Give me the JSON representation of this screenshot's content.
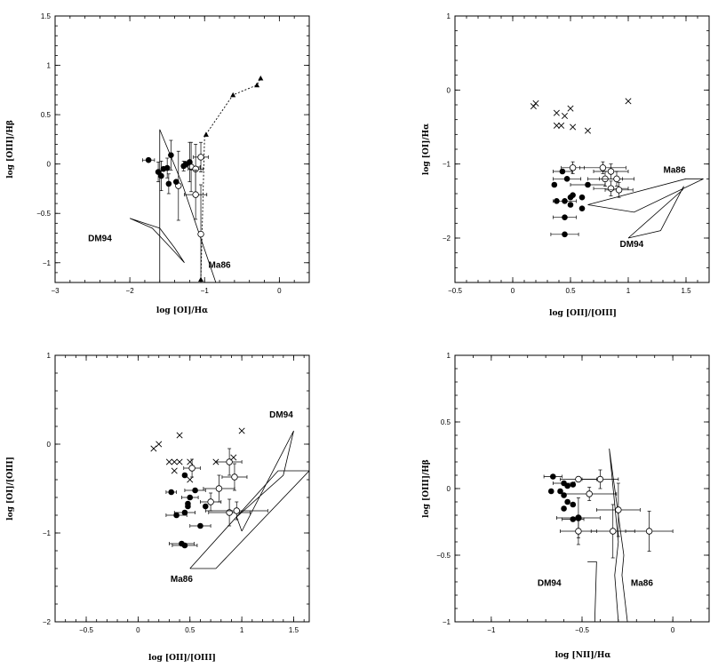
{
  "chart_data": [
    {
      "type": "scatter",
      "xlabel": "log [OI]/Hα",
      "ylabel": "log [OIII]/Hβ",
      "xlim": [
        -3,
        0.4
      ],
      "ylim": [
        -1.2,
        1.5
      ],
      "xticks": [
        -3,
        -2,
        -1,
        0
      ],
      "yticks": [
        -1,
        -0.5,
        0,
        0.5,
        1,
        1.5
      ],
      "yticklabels": [
        "−1",
        "−0.5",
        "0",
        "0.5",
        "1",
        "1.5"
      ],
      "xticklabels": [
        "−3",
        "−2",
        "−1",
        "0"
      ],
      "filled_points": [
        {
          "x": -1.75,
          "y": 0.04,
          "xerr": 0.08
        },
        {
          "x": -1.62,
          "y": -0.08,
          "yerr": 0.1
        },
        {
          "x": -1.58,
          "y": -0.12,
          "yerr": 0.15
        },
        {
          "x": -1.55,
          "y": -0.05
        },
        {
          "x": -1.5,
          "y": -0.04,
          "yerr": 0.1
        },
        {
          "x": -1.48,
          "y": -0.2,
          "yerr": 0.1
        },
        {
          "x": -1.45,
          "y": 0.09,
          "yerr": 0.15
        },
        {
          "x": -1.38,
          "y": -0.18
        },
        {
          "x": -1.28,
          "y": -0.02,
          "yerr": 0.05
        },
        {
          "x": -1.25,
          "y": 0.0
        },
        {
          "x": -1.2,
          "y": 0.02,
          "yerr": 0.2
        }
      ],
      "open_points": [
        {
          "x": -1.35,
          "y": -0.22,
          "yerr": 0.35
        },
        {
          "x": -1.18,
          "y": -0.03,
          "xerr": 0.12,
          "yerr": 0.25
        },
        {
          "x": -1.12,
          "y": -0.05,
          "xerr": 0.1,
          "yerr": 0.25
        },
        {
          "x": -1.05,
          "y": 0.07,
          "xerr": 0.1,
          "yerr": 0.15
        },
        {
          "x": -1.12,
          "y": -0.31,
          "xerr": 0.15,
          "yerr": 0.25
        },
        {
          "x": -1.05,
          "y": -0.71,
          "yerr": 0.5
        }
      ],
      "triangles": [
        {
          "x": -1.05,
          "y": -1.17
        },
        {
          "x": -0.98,
          "y": 0.3
        },
        {
          "x": -0.62,
          "y": 0.7
        },
        {
          "x": -0.3,
          "y": 0.8
        },
        {
          "x": -0.25,
          "y": 0.87
        }
      ],
      "dotted_track": [
        [
          -1.05,
          -1.17
        ],
        [
          -1.0,
          0.28
        ],
        [
          -0.62,
          0.7
        ],
        [
          -0.3,
          0.8
        ],
        [
          -0.25,
          0.87
        ]
      ],
      "models": [
        {
          "name": "DM94",
          "label": "DM94",
          "polygon": [
            [
              -2.0,
              -0.55
            ],
            [
              -1.7,
              -0.65
            ],
            [
              -1.45,
              -0.85
            ],
            [
              -1.27,
              -1.0
            ],
            [
              -1.4,
              -0.85
            ],
            [
              -1.6,
              -0.65
            ],
            [
              -2.0,
              -0.55
            ]
          ]
        },
        {
          "name": "Ma86",
          "label": "Ma86",
          "polygon": [
            [
              -1.6,
              -1.2
            ],
            [
              -1.6,
              0.35
            ],
            [
              -1.3,
              -0.2
            ],
            [
              -0.85,
              -1.2
            ]
          ]
        }
      ],
      "label_positions": {
        "DM94": [
          -2.4,
          -0.78
        ],
        "Ma86": [
          -0.8,
          -1.05
        ]
      }
    },
    {
      "type": "scatter",
      "xlabel": "log [OII]/[OIII]",
      "ylabel": "log [OI]/Hα",
      "xlim": [
        -0.5,
        1.7
      ],
      "ylim": [
        -2.6,
        1
      ],
      "xticks": [
        -0.5,
        0,
        0.5,
        1,
        1.5
      ],
      "yticks": [
        -2,
        -1,
        0,
        1
      ],
      "xticklabels": [
        "−0.5",
        "0",
        "0.5",
        "1",
        "1.5"
      ],
      "yticklabels": [
        "−2",
        "−1",
        "0",
        "1"
      ],
      "crosses": [
        {
          "x": 0.18,
          "y": -0.22
        },
        {
          "x": 0.2,
          "y": -0.18
        },
        {
          "x": 0.38,
          "y": -0.31
        },
        {
          "x": 0.45,
          "y": -0.35
        },
        {
          "x": 0.5,
          "y": -0.25
        },
        {
          "x": 0.38,
          "y": -0.48
        },
        {
          "x": 0.42,
          "y": -0.48
        },
        {
          "x": 0.52,
          "y": -0.5
        },
        {
          "x": 0.65,
          "y": -0.55
        },
        {
          "x": 1.0,
          "y": -0.15
        }
      ],
      "filled_points": [
        {
          "x": 0.43,
          "y": -1.1,
          "xerr": 0.08
        },
        {
          "x": 0.47,
          "y": -1.2,
          "xerr": 0.12
        },
        {
          "x": 0.38,
          "y": -1.5
        },
        {
          "x": 0.36,
          "y": -1.28
        },
        {
          "x": 0.45,
          "y": -1.5,
          "xerr": 0.1
        },
        {
          "x": 0.5,
          "y": -1.45
        },
        {
          "x": 0.52,
          "y": -1.42
        },
        {
          "x": 0.6,
          "y": -1.45
        },
        {
          "x": 0.6,
          "y": -1.6
        },
        {
          "x": 0.65,
          "y": -1.28,
          "xerr": 0.15
        },
        {
          "x": 0.5,
          "y": -1.55
        },
        {
          "x": 0.45,
          "y": -1.72,
          "xerr": 0.1
        },
        {
          "x": 0.45,
          "y": -1.95,
          "xerr": 0.12
        }
      ],
      "open_points": [
        {
          "x": 0.52,
          "y": -1.05,
          "xerr": 0.1,
          "yerr": 0.08
        },
        {
          "x": 0.78,
          "y": -1.05,
          "xerr": 0.2,
          "yerr": 0.08
        },
        {
          "x": 0.8,
          "y": -1.2,
          "xerr": 0.15,
          "yerr": 0.1
        },
        {
          "x": 0.85,
          "y": -1.1,
          "xerr": 0.15,
          "yerr": 0.1
        },
        {
          "x": 0.9,
          "y": -1.2,
          "xerr": 0.15,
          "yerr": 0.1
        },
        {
          "x": 0.85,
          "y": -1.33,
          "xerr": 0.15,
          "yerr": 0.1
        },
        {
          "x": 0.92,
          "y": -1.35,
          "xerr": 0.12,
          "yerr": 0.1
        }
      ],
      "models": [
        {
          "name": "Ma86",
          "label": "Ma86",
          "polygon": [
            [
              0.65,
              -1.55
            ],
            [
              1.5,
              -1.2
            ],
            [
              1.65,
              -1.2
            ],
            [
              1.05,
              -1.65
            ],
            [
              0.65,
              -1.55
            ]
          ]
        },
        {
          "name": "DM94",
          "label": "DM94",
          "polygon": [
            [
              1.0,
              -2.0
            ],
            [
              1.47,
              -1.35
            ],
            [
              1.48,
              -1.3
            ],
            [
              1.28,
              -1.9
            ],
            [
              1.0,
              -2.0
            ]
          ]
        }
      ],
      "label_positions": {
        "Ma86": [
          1.4,
          -1.12
        ],
        "DM94": [
          1.03,
          -2.12
        ]
      }
    },
    {
      "type": "scatter",
      "xlabel": "log [OII]/[OIII]",
      "ylabel": "log [OI]/[OIII]",
      "xlim": [
        -0.8,
        1.65
      ],
      "ylim": [
        -2,
        1
      ],
      "xticks": [
        -0.5,
        0,
        0.5,
        1,
        1.5
      ],
      "yticks": [
        -2,
        -1,
        0,
        1
      ],
      "xticklabels": [
        "−0.5",
        "0",
        "0.5",
        "1",
        "1.5"
      ],
      "yticklabels": [
        "−2",
        "−1",
        "0",
        "1"
      ],
      "crosses": [
        {
          "x": 0.15,
          "y": -0.05
        },
        {
          "x": 0.2,
          "y": 0.0
        },
        {
          "x": 0.4,
          "y": 0.1
        },
        {
          "x": 1.0,
          "y": 0.15
        },
        {
          "x": 0.3,
          "y": -0.2
        },
        {
          "x": 0.35,
          "y": -0.2
        },
        {
          "x": 0.4,
          "y": -0.2
        },
        {
          "x": 0.5,
          "y": -0.2
        },
        {
          "x": 0.75,
          "y": -0.2
        },
        {
          "x": 0.92,
          "y": -0.15
        },
        {
          "x": 0.35,
          "y": -0.3
        },
        {
          "x": 0.5,
          "y": -0.4
        }
      ],
      "filled_points": [
        {
          "x": 0.32,
          "y": -0.54,
          "xerr": 0.05
        },
        {
          "x": 0.45,
          "y": -0.35
        },
        {
          "x": 0.5,
          "y": -0.6,
          "xerr": 0.08
        },
        {
          "x": 0.55,
          "y": -0.52,
          "xerr": 0.1
        },
        {
          "x": 0.6,
          "y": -0.92,
          "xerr": 0.1
        },
        {
          "x": 0.48,
          "y": -0.67
        },
        {
          "x": 0.45,
          "y": -0.77,
          "xerr": 0.1
        },
        {
          "x": 0.37,
          "y": -0.8,
          "xerr": 0.1
        },
        {
          "x": 0.48,
          "y": -0.7
        },
        {
          "x": 0.65,
          "y": -0.7
        },
        {
          "x": 0.42,
          "y": -1.12,
          "xerr": 0.12
        },
        {
          "x": 0.45,
          "y": -1.14,
          "xerr": 0.12
        }
      ],
      "open_points": [
        {
          "x": 0.52,
          "y": -0.27,
          "xerr": 0.08,
          "yerr": 0.1
        },
        {
          "x": 0.88,
          "y": -0.2,
          "xerr": 0.12,
          "yerr": 0.15
        },
        {
          "x": 0.93,
          "y": -0.37,
          "xerr": 0.12,
          "yerr": 0.15
        },
        {
          "x": 0.78,
          "y": -0.5,
          "xerr": 0.15,
          "yerr": 0.15
        },
        {
          "x": 0.7,
          "y": -0.65,
          "xerr": 0.1,
          "yerr": 0.1
        },
        {
          "x": 0.88,
          "y": -0.77,
          "xerr": 0.2,
          "yerr": 0.15
        },
        {
          "x": 0.95,
          "y": -0.75,
          "xerr": 0.3,
          "yerr": 0.1
        }
      ],
      "models": [
        {
          "name": "DM94",
          "label": "DM94",
          "polygon": [
            [
              1.0,
              -0.98
            ],
            [
              1.5,
              0.15
            ],
            [
              1.4,
              -0.35
            ],
            [
              0.95,
              -0.82
            ],
            [
              1.0,
              -0.98
            ]
          ]
        },
        {
          "name": "Ma86",
          "label": "Ma86",
          "polygon": [
            [
              0.5,
              -1.4
            ],
            [
              1.35,
              -0.3
            ],
            [
              1.65,
              -0.3
            ],
            [
              0.75,
              -1.4
            ],
            [
              0.5,
              -1.4
            ]
          ]
        }
      ],
      "label_positions": {
        "DM94": [
          1.38,
          0.3
        ],
        "Ma86": [
          0.42,
          -1.55
        ]
      }
    },
    {
      "type": "scatter",
      "xlabel": "log [NII]/Hα",
      "ylabel": "log [OIII]/Hβ",
      "xlim": [
        -1.2,
        0.2
      ],
      "ylim": [
        -1,
        1
      ],
      "xticks": [
        -1,
        -0.5,
        0
      ],
      "yticks": [
        -1,
        -0.5,
        0,
        0.5,
        1
      ],
      "xticklabels": [
        "−1",
        "−0.5",
        "0"
      ],
      "yticklabels": [
        "−1",
        "−0.5",
        "0",
        "0.5",
        "1"
      ],
      "filled_points": [
        {
          "x": -0.66,
          "y": 0.09,
          "xerr": 0.05
        },
        {
          "x": -0.6,
          "y": 0.04,
          "xerr": 0.06
        },
        {
          "x": -0.58,
          "y": 0.02
        },
        {
          "x": -0.55,
          "y": 0.03
        },
        {
          "x": -0.62,
          "y": -0.02
        },
        {
          "x": -0.67,
          "y": -0.02
        },
        {
          "x": -0.6,
          "y": -0.05
        },
        {
          "x": -0.58,
          "y": -0.1
        },
        {
          "x": -0.55,
          "y": -0.12
        },
        {
          "x": -0.6,
          "y": -0.15
        },
        {
          "x": -0.55,
          "y": -0.23,
          "xerr": 0.06
        },
        {
          "x": -0.52,
          "y": -0.22
        }
      ],
      "open_points": [
        {
          "x": -0.52,
          "y": 0.07,
          "xerr": 0.1
        },
        {
          "x": -0.4,
          "y": 0.07,
          "xerr": 0.1,
          "yerr": 0.07
        },
        {
          "x": -0.46,
          "y": -0.04,
          "xerr": 0.15,
          "yerr": 0.05
        },
        {
          "x": -0.52,
          "y": -0.22,
          "xerr": 0.12,
          "yerr": 0.15
        },
        {
          "x": -0.52,
          "y": -0.32,
          "xerr": 0.1,
          "yerr": 0.1
        },
        {
          "x": -0.33,
          "y": -0.32,
          "xerr": 0.12,
          "yerr": 0.2
        },
        {
          "x": -0.3,
          "y": -0.16,
          "xerr": 0.12,
          "yerr": 0.2
        },
        {
          "x": -0.13,
          "y": -0.32,
          "xerr": 0.13,
          "yerr": 0.15
        }
      ],
      "models": [
        {
          "name": "DM94",
          "label": "DM94",
          "polygon": [
            [
              -0.47,
              -0.55
            ],
            [
              -0.42,
              -0.55
            ],
            [
              -0.43,
              -1.0
            ]
          ]
        },
        {
          "name": "Ma86",
          "label": "Ma86",
          "polygon": [
            [
              -0.35,
              0.3
            ],
            [
              -0.27,
              -0.5
            ],
            [
              -0.28,
              -0.65
            ],
            [
              -0.25,
              -1.0
            ],
            [
              -0.3,
              -1.0
            ],
            [
              -0.32,
              -0.65
            ],
            [
              -0.3,
              -0.4
            ],
            [
              -0.35,
              0.3
            ]
          ]
        }
      ],
      "label_positions": {
        "DM94": [
          -0.68,
          -0.73
        ],
        "Ma86": [
          -0.17,
          -0.73
        ]
      }
    }
  ]
}
